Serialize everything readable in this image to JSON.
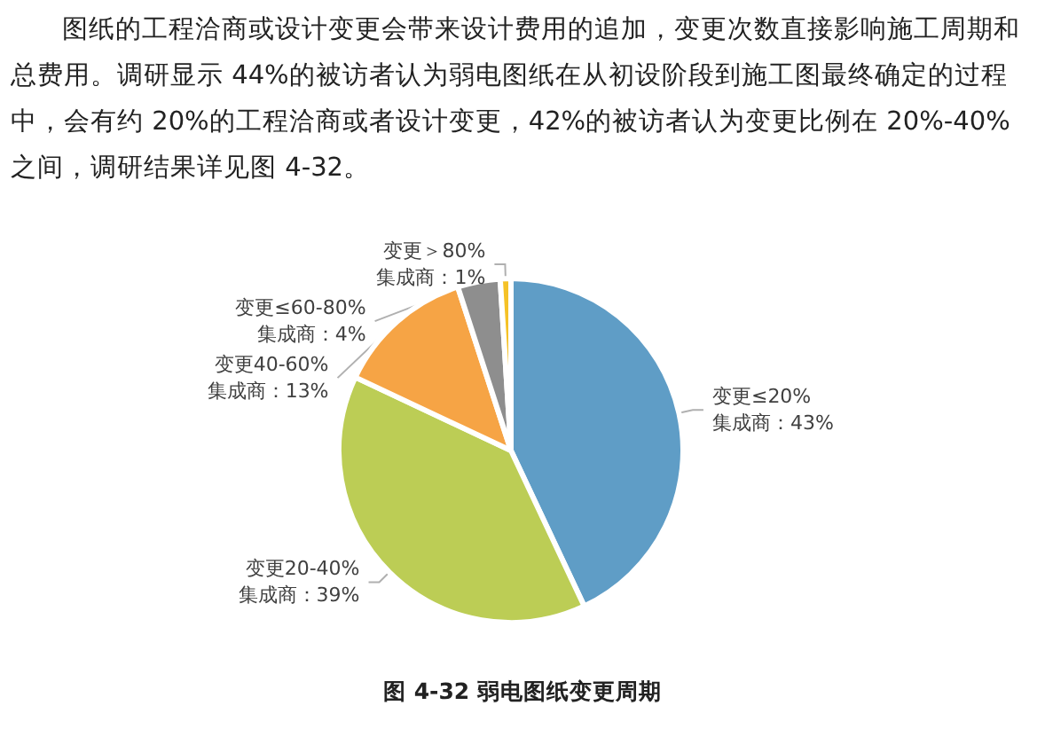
{
  "chart_data": {
    "type": "pie",
    "title": "图 4-32 弱电图纸变更周期",
    "annotations": [
      "图纸的工程洽商或设计变更会带来设计费用的追加，变更次数直接影响施工周期和总费用。调研显示 44%的被访者认为弱电图纸在从初设阶段到施工图最终确定的过程中，会有约 20%的工程洽商或者设计变更，42%的被访者认为变更比例在 20%-40%之间，调研结果详见图 4-32。"
    ],
    "categories": [
      "变更≤20%",
      "变更20-40%",
      "变更40-60%",
      "变更≤60-80%",
      "变更＞80%"
    ],
    "values": [
      43,
      39,
      13,
      4,
      1
    ],
    "colors": [
      "#5f9dc6",
      "#bccd55",
      "#f6a445",
      "#8e8e8e",
      "#f5c227"
    ],
    "value_labels": [
      "集成商：43%",
      "集成商：39%",
      "集成商：13%",
      "集成商：4%",
      "集成商：1%"
    ]
  }
}
